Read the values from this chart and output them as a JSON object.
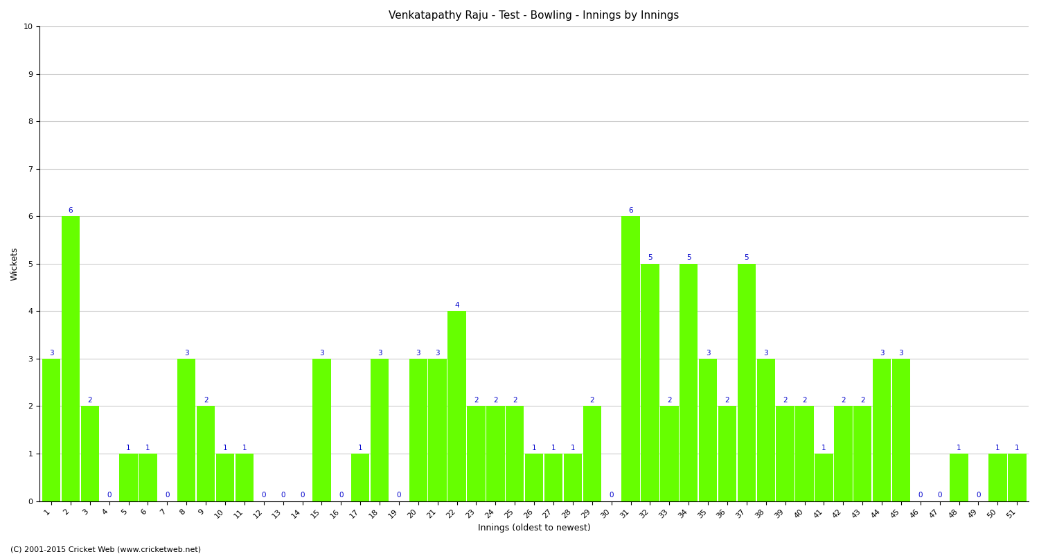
{
  "title": "Venkatapathy Raju - Test - Bowling - Innings by Innings",
  "xlabel": "Innings (oldest to newest)",
  "ylabel": "Wickets",
  "ylim": [
    0,
    10
  ],
  "yticks": [
    0,
    1,
    2,
    3,
    4,
    5,
    6,
    7,
    8,
    9,
    10
  ],
  "bar_color": "#66ff00",
  "label_color": "#0000cc",
  "background_color": "#ffffff",
  "grid_color": "#cccccc",
  "categories": [
    "1",
    "2",
    "3",
    "4",
    "5",
    "6",
    "7",
    "8",
    "9",
    "10",
    "11",
    "12",
    "13",
    "14",
    "15",
    "16",
    "17",
    "18",
    "19",
    "20",
    "21",
    "22",
    "23",
    "24",
    "25",
    "26",
    "27",
    "28",
    "29",
    "30",
    "31",
    "32",
    "33",
    "34",
    "35",
    "36",
    "37",
    "38",
    "39",
    "40",
    "41",
    "42",
    "43",
    "44",
    "45",
    "46",
    "47",
    "48",
    "49",
    "50",
    "51"
  ],
  "values": [
    3,
    6,
    2,
    0,
    1,
    1,
    0,
    3,
    2,
    1,
    1,
    0,
    0,
    0,
    3,
    0,
    1,
    3,
    0,
    3,
    3,
    4,
    2,
    2,
    2,
    1,
    1,
    1,
    2,
    0,
    6,
    5,
    2,
    5,
    3,
    2,
    5,
    3,
    2,
    2,
    1,
    2,
    2,
    3,
    3,
    0,
    0,
    1,
    0,
    1,
    1
  ],
  "title_fontsize": 11,
  "label_fontsize": 9,
  "tick_fontsize": 8,
  "annotation_fontsize": 7.5,
  "footer_text": "(C) 2001-2015 Cricket Web (www.cricketweb.net)",
  "footer_fontsize": 8,
  "bar_width": 0.95
}
